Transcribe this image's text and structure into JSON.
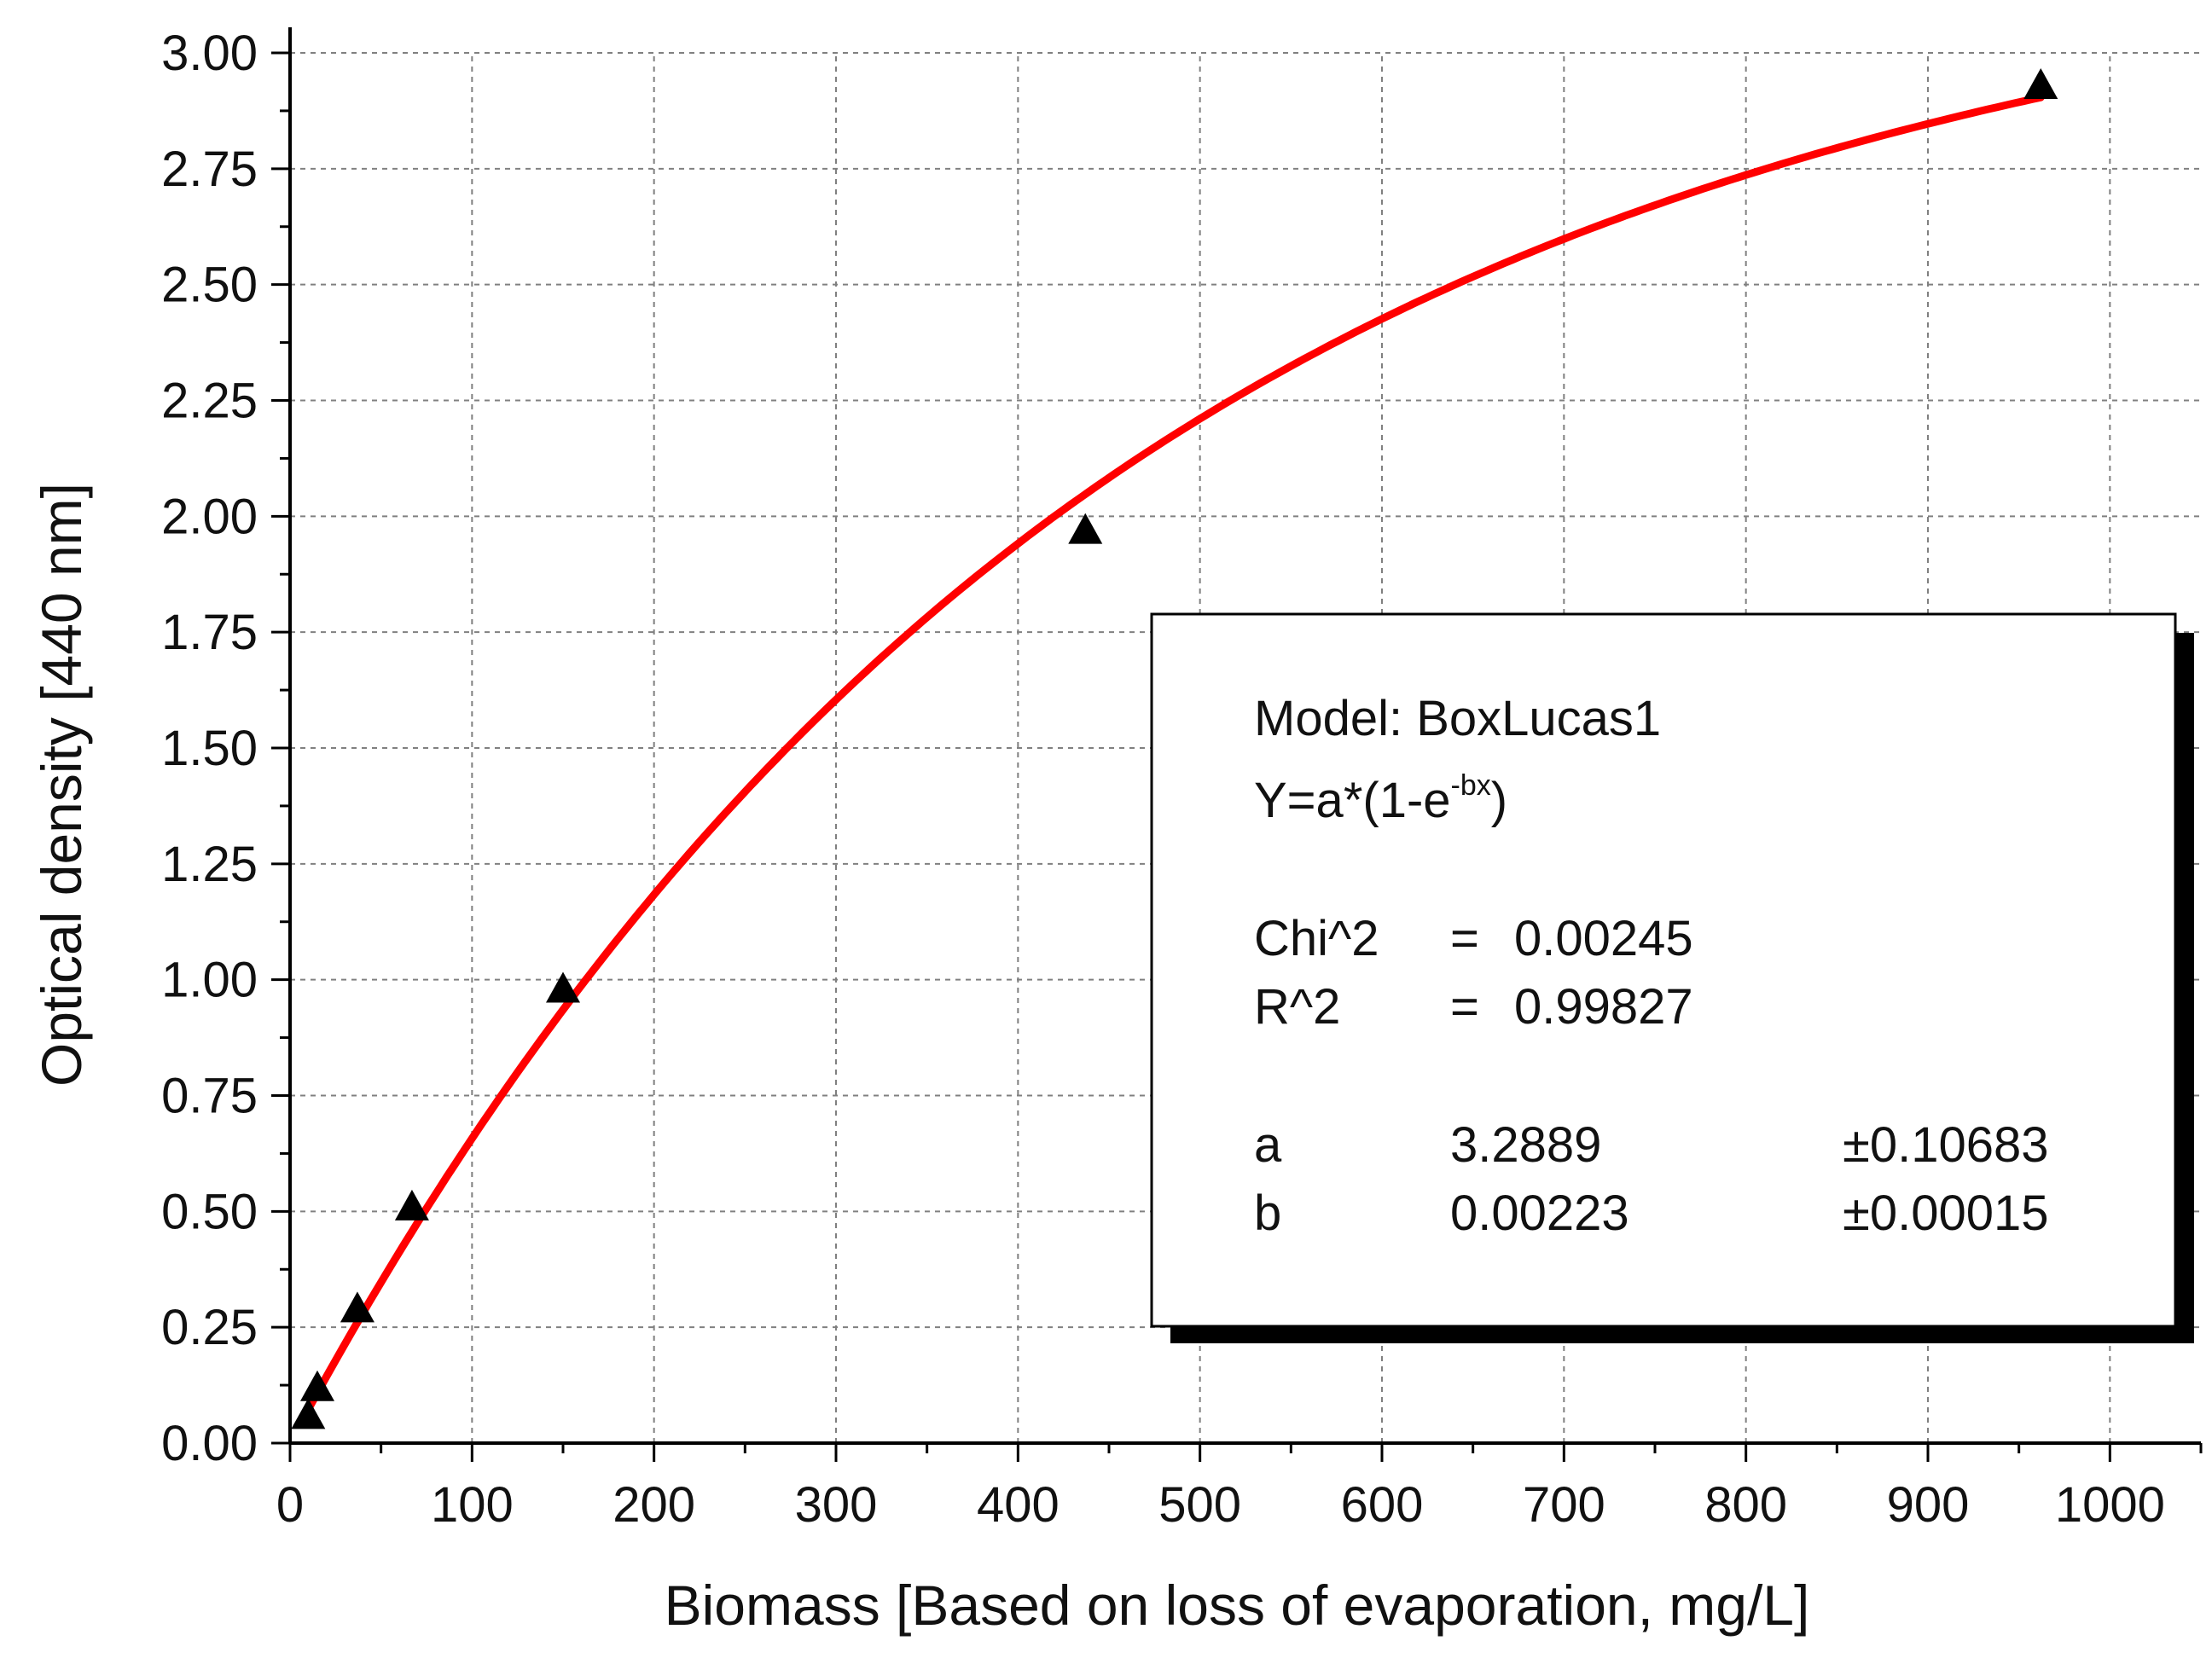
{
  "chart_data": {
    "type": "scatter",
    "xlabel": "Biomass [Based on loss of evaporation, mg/L]",
    "ylabel": "Optical density [440 nm]",
    "xlim": [
      0,
      1050
    ],
    "ylim": [
      0,
      3.0
    ],
    "x_ticks": [
      "0",
      "100",
      "200",
      "300",
      "400",
      "500",
      "600",
      "700",
      "800",
      "900",
      "1000"
    ],
    "y_ticks": [
      "0.00",
      "0.25",
      "0.50",
      "0.75",
      "1.00",
      "1.25",
      "1.50",
      "1.75",
      "2.00",
      "2.25",
      "2.50",
      "2.75",
      "3.00"
    ],
    "grid": true,
    "series": [
      {
        "marker": "triangle",
        "color": "#000000",
        "points": [
          {
            "x": 10,
            "y": 0.06
          },
          {
            "x": 15,
            "y": 0.12
          },
          {
            "x": 37,
            "y": 0.29
          },
          {
            "x": 67,
            "y": 0.51
          },
          {
            "x": 150,
            "y": 0.98
          },
          {
            "x": 437,
            "y": 1.97
          },
          {
            "x": 962,
            "y": 2.93
          }
        ]
      },
      {
        "line": "fit",
        "color": "#ff0000",
        "model": {
          "a": 3.2889,
          "b": 0.00223
        },
        "x_range": [
          10,
          962
        ]
      }
    ],
    "annotation": {
      "model_line": "Model: BoxLucas1",
      "equation_prefix": "Y=a*(1-e",
      "equation_exponent": "-bx",
      "equation_suffix": ")",
      "stats": [
        {
          "name": "Chi^2",
          "eq": "=",
          "value": "0.00245"
        },
        {
          "name": "R^2",
          "eq": "=",
          "value": "0.99827"
        }
      ],
      "params": [
        {
          "name": "a",
          "value": "3.2889",
          "error": "±0.10683"
        },
        {
          "name": "b",
          "value": "0.00223",
          "error": "±0.00015"
        }
      ]
    }
  }
}
